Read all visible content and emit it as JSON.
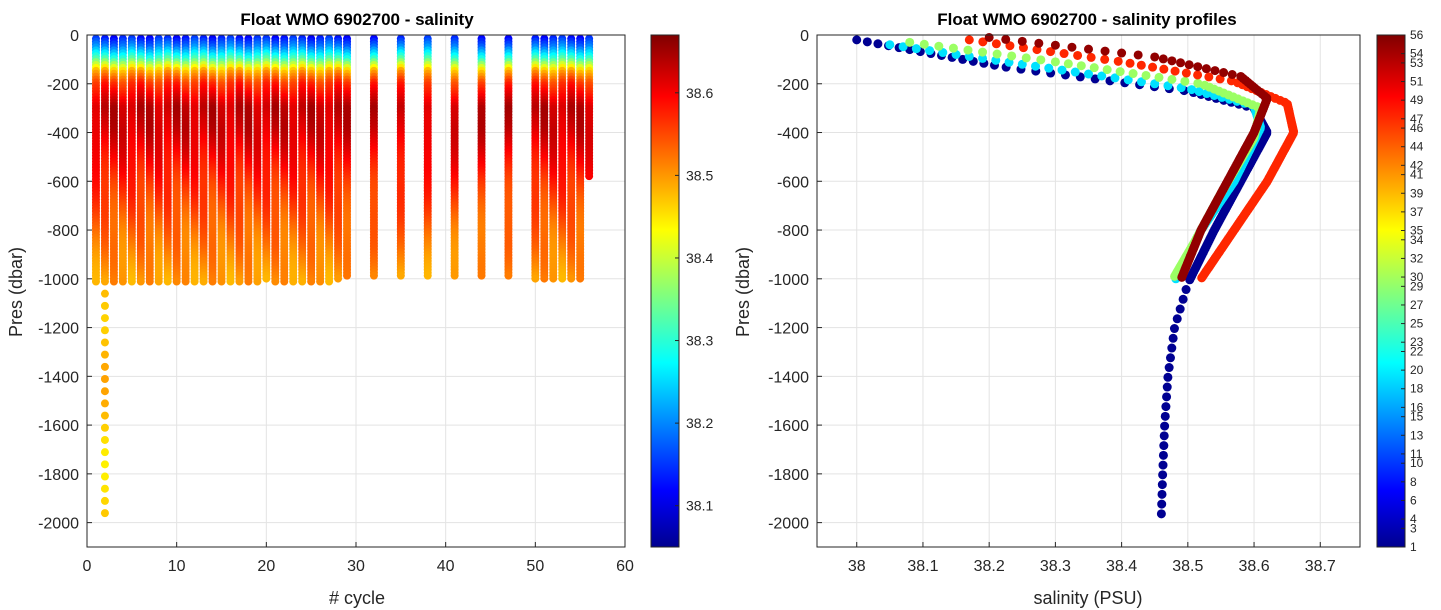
{
  "chart_data": [
    {
      "type": "scatter",
      "title": "Float WMO 6902700 - salinity",
      "xlabel": "# cycle",
      "ylabel": "Pres (dbar)",
      "xlim": [
        0,
        60
      ],
      "ylim": [
        -2100,
        0
      ],
      "xticks": [
        0,
        10,
        20,
        30,
        40,
        50,
        60
      ],
      "yticks": [
        0,
        -200,
        -400,
        -600,
        -800,
        -1000,
        -1200,
        -1400,
        -1600,
        -1800,
        -2000
      ],
      "grid": true,
      "colormap": "jet",
      "color_variable": "salinity",
      "colorbar": {
        "range": [
          38.05,
          38.67
        ],
        "ticks": [
          "38.1",
          "38.2",
          "38.3",
          "38.4",
          "38.5",
          "38.6"
        ]
      },
      "cycles": [
        1,
        2,
        3,
        4,
        5,
        6,
        7,
        8,
        9,
        10,
        11,
        12,
        13,
        14,
        15,
        16,
        17,
        18,
        19,
        20,
        21,
        22,
        23,
        24,
        25,
        26,
        27,
        28,
        29,
        32,
        35,
        38,
        41,
        44,
        47,
        50,
        51,
        52,
        53,
        54,
        55,
        56
      ],
      "profile_max_depth": [
        -1030,
        -1970,
        -1020,
        -1020,
        -1020,
        -1020,
        -1020,
        -1020,
        -1020,
        -1020,
        -1020,
        -1020,
        -1020,
        -1020,
        -1020,
        -1020,
        -1020,
        -1020,
        -1020,
        -1010,
        -1020,
        -1020,
        -1020,
        -1020,
        -1020,
        -1020,
        -1020,
        -1010,
        -990,
        -990,
        -990,
        -990,
        -990,
        -990,
        -990,
        -1010,
        -1010,
        -1010,
        -1000,
        -1000,
        -1000,
        -590
      ],
      "salinity_profile": [
        {
          "pres": 0,
          "salinity": 38.12
        },
        {
          "pres": -50,
          "salinity": 38.2
        },
        {
          "pres": -100,
          "salinity": 38.32
        },
        {
          "pres": -150,
          "salinity": 38.48
        },
        {
          "pres": -200,
          "salinity": 38.56
        },
        {
          "pres": -300,
          "salinity": 38.63
        },
        {
          "pres": -400,
          "salinity": 38.62
        },
        {
          "pres": -600,
          "salinity": 38.57
        },
        {
          "pres": -800,
          "salinity": 38.53
        },
        {
          "pres": -1000,
          "salinity": 38.5
        },
        {
          "pres": -1200,
          "salinity": 38.48
        },
        {
          "pres": -1600,
          "salinity": 38.47
        },
        {
          "pres": -2000,
          "salinity": 38.46
        }
      ]
    },
    {
      "type": "scatter",
      "title": "Float WMO 6902700 - salinity profiles",
      "xlabel": "salinity (PSU)",
      "ylabel": "Pres (dbar)",
      "xlim": [
        37.94,
        38.76
      ],
      "ylim": [
        -2100,
        0
      ],
      "xticks": [
        "38",
        "38.1",
        "38.2",
        "38.3",
        "38.4",
        "38.5",
        "38.6",
        "38.7"
      ],
      "yticks": [
        0,
        -200,
        -400,
        -600,
        -800,
        -1000,
        -1200,
        -1400,
        -1600,
        -1800,
        -2000
      ],
      "grid": true,
      "colormap": "jet",
      "color_variable": "cycle number",
      "colorbar": {
        "range": [
          1,
          56
        ],
        "ticks": [
          "1",
          "3",
          "4",
          "6",
          "8",
          "10",
          "11",
          "13",
          "15",
          "16",
          "18",
          "20",
          "22",
          "23",
          "25",
          "27",
          "29",
          "30",
          "32",
          "34",
          "35",
          "37",
          "39",
          "41",
          "42",
          "44",
          "46",
          "47",
          "49",
          "51",
          "53",
          "54",
          "56"
        ]
      },
      "profiles": [
        {
          "cycle": 2,
          "points": [
            {
              "salinity": 38.0,
              "pres": -20
            },
            {
              "salinity": 38.22,
              "pres": -130
            },
            {
              "salinity": 38.5,
              "pres": -230
            },
            {
              "salinity": 38.6,
              "pres": -300
            },
            {
              "salinity": 38.62,
              "pres": -400
            },
            {
              "salinity": 38.58,
              "pres": -600
            },
            {
              "salinity": 38.54,
              "pres": -800
            },
            {
              "salinity": 38.5,
              "pres": -1020
            },
            {
              "salinity": 38.48,
              "pres": -1200
            },
            {
              "salinity": 38.47,
              "pres": -1400
            },
            {
              "salinity": 38.465,
              "pres": -1600
            },
            {
              "salinity": 38.462,
              "pres": -1800
            },
            {
              "salinity": 38.46,
              "pres": -1970
            }
          ]
        },
        {
          "cycle": 20,
          "points": [
            {
              "salinity": 38.05,
              "pres": -40
            },
            {
              "salinity": 38.25,
              "pres": -120
            },
            {
              "salinity": 38.5,
              "pres": -220
            },
            {
              "salinity": 38.6,
              "pres": -290
            },
            {
              "salinity": 38.61,
              "pres": -380
            },
            {
              "salinity": 38.57,
              "pres": -600
            },
            {
              "salinity": 38.52,
              "pres": -800
            },
            {
              "salinity": 38.48,
              "pres": -1010
            }
          ]
        },
        {
          "cycle": 30,
          "points": [
            {
              "salinity": 38.08,
              "pres": -30
            },
            {
              "salinity": 38.3,
              "pres": -110
            },
            {
              "salinity": 38.52,
              "pres": -200
            },
            {
              "salinity": 38.61,
              "pres": -300
            },
            {
              "salinity": 38.6,
              "pres": -420
            },
            {
              "salinity": 38.55,
              "pres": -650
            },
            {
              "salinity": 38.51,
              "pres": -850
            },
            {
              "salinity": 38.48,
              "pres": -990
            }
          ]
        },
        {
          "cycle": 47,
          "points": [
            {
              "salinity": 38.17,
              "pres": -20
            },
            {
              "salinity": 38.4,
              "pres": -110
            },
            {
              "salinity": 38.57,
              "pres": -190
            },
            {
              "salinity": 38.65,
              "pres": -280
            },
            {
              "salinity": 38.66,
              "pres": -400
            },
            {
              "salinity": 38.62,
              "pres": -600
            },
            {
              "salinity": 38.57,
              "pres": -800
            },
            {
              "salinity": 38.52,
              "pres": -1000
            }
          ]
        },
        {
          "cycle": 55,
          "points": [
            {
              "salinity": 38.2,
              "pres": -10
            },
            {
              "salinity": 38.45,
              "pres": -90
            },
            {
              "salinity": 38.58,
              "pres": -170
            },
            {
              "salinity": 38.62,
              "pres": -260
            },
            {
              "salinity": 38.6,
              "pres": -400
            },
            {
              "salinity": 38.56,
              "pres": -600
            },
            {
              "salinity": 38.52,
              "pres": -800
            },
            {
              "salinity": 38.49,
              "pres": -1000
            }
          ]
        }
      ]
    }
  ]
}
